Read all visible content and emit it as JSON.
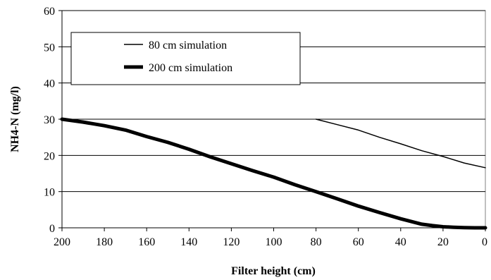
{
  "chart_data": {
    "type": "line",
    "title": "",
    "xlabel": "Filter height (cm)",
    "ylabel": "NH4-N (mg/l)",
    "xlim": [
      200,
      0
    ],
    "x_reversed": true,
    "ylim": [
      0,
      60
    ],
    "xticks": [
      200,
      180,
      160,
      140,
      120,
      100,
      80,
      60,
      40,
      20,
      0
    ],
    "yticks": [
      0,
      10,
      20,
      30,
      40,
      50,
      60
    ],
    "grid": "horizontal",
    "legend": "top-left",
    "series": [
      {
        "name": "80 cm simulation",
        "style": "thin",
        "color": "#000000",
        "x": [
          80,
          70,
          60,
          50,
          40,
          30,
          20,
          10,
          0
        ],
        "y": [
          30,
          28.5,
          27,
          25,
          23.2,
          21.3,
          19.7,
          17.9,
          16.6
        ]
      },
      {
        "name": "200 cm simulation",
        "style": "thick",
        "color": "#000000",
        "x": [
          200,
          190,
          180,
          170,
          160,
          150,
          140,
          130,
          120,
          110,
          100,
          90,
          80,
          70,
          60,
          50,
          40,
          30,
          25,
          20,
          15,
          10,
          5,
          0
        ],
        "y": [
          30,
          29.2,
          28.2,
          27,
          25.2,
          23.6,
          21.7,
          19.6,
          17.7,
          15.8,
          14,
          11.9,
          10,
          8,
          6,
          4.2,
          2.5,
          1,
          0.6,
          0.3,
          0.15,
          0.05,
          0,
          0
        ]
      }
    ]
  }
}
